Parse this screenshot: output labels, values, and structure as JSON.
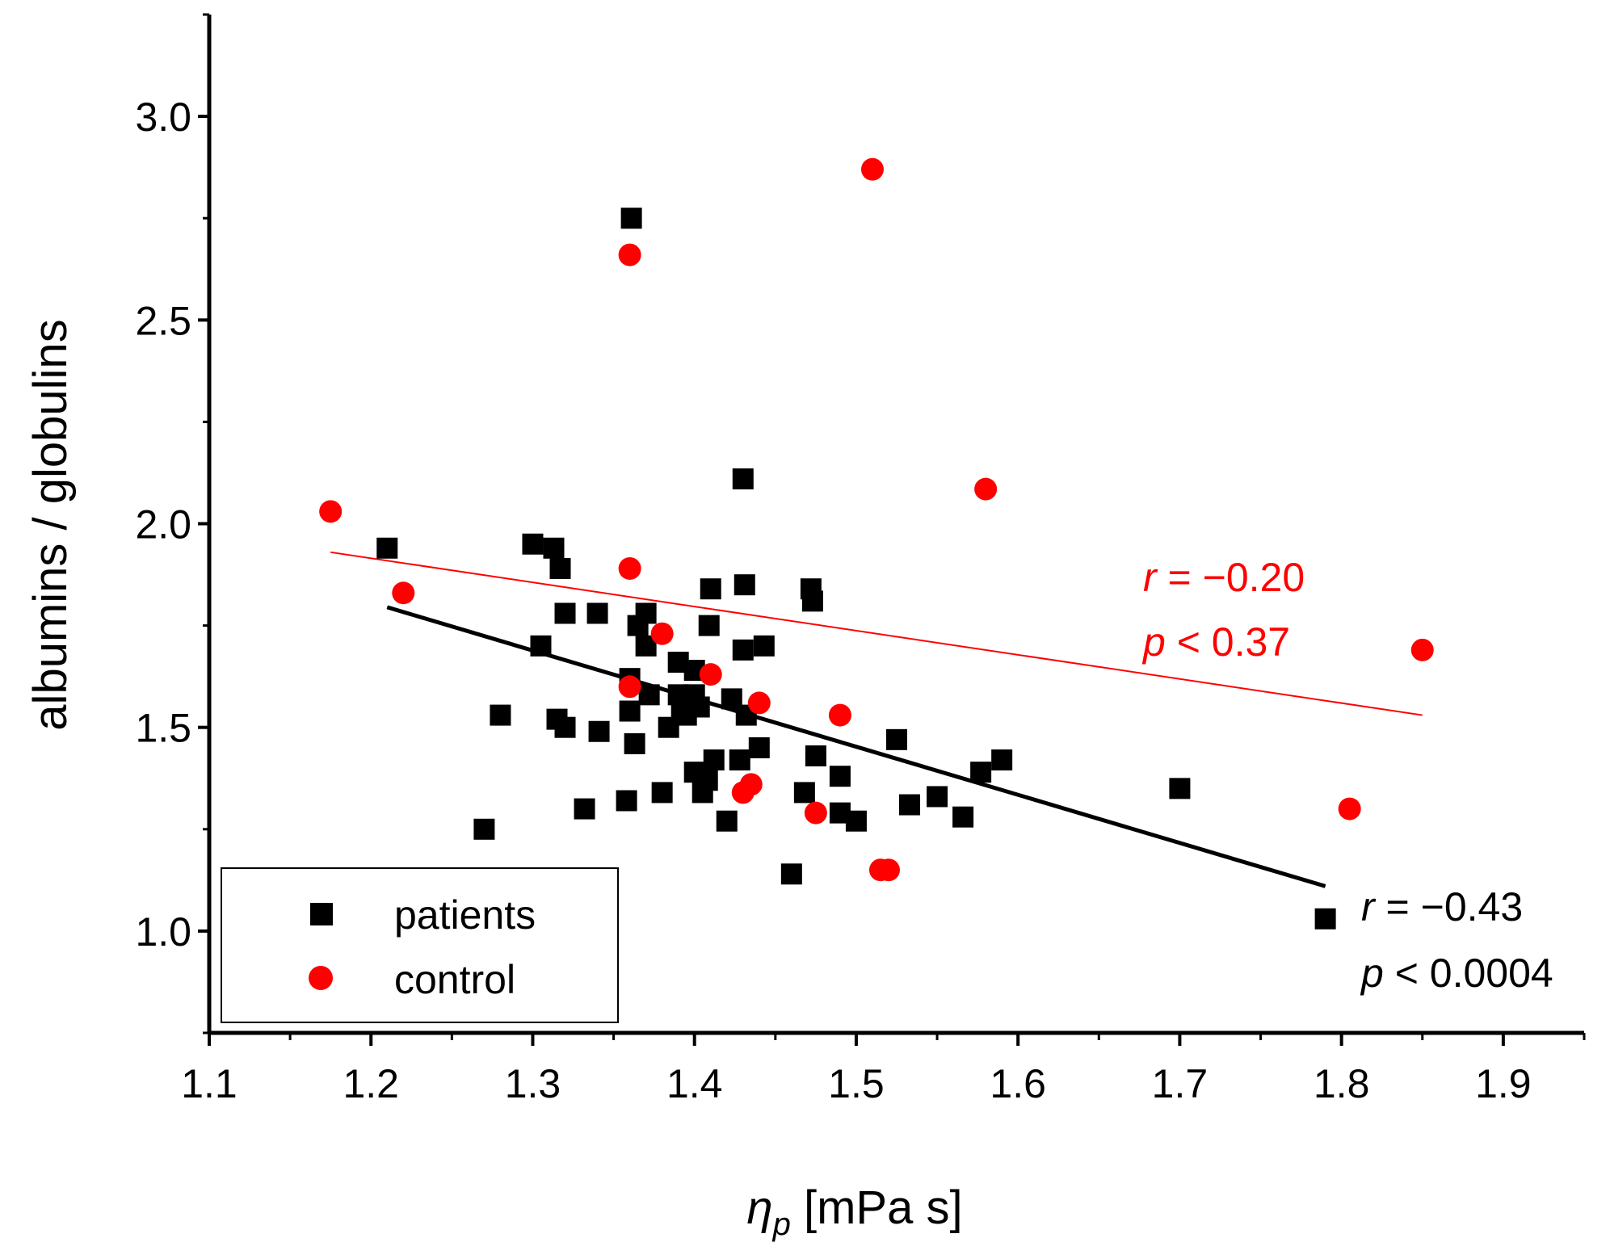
{
  "chart_data": {
    "type": "scatter",
    "xlabel": {
      "symbol": "η",
      "subscript": "p",
      "unit": " [mPa s]"
    },
    "ylabel": "albumins / globulins",
    "xlim": [
      1.1,
      1.95
    ],
    "ylim": [
      0.75,
      3.25
    ],
    "xticks": [
      "1.1",
      "1.2",
      "1.3",
      "1.4",
      "1.5",
      "1.6",
      "1.7",
      "1.8",
      "1.9"
    ],
    "yticks": [
      "1.0",
      "1.5",
      "2.0",
      "2.5",
      "3.0"
    ],
    "legend": {
      "position": "bottom-left",
      "entries": [
        "patients",
        "control"
      ]
    },
    "series": [
      {
        "name": "patients",
        "marker": "square",
        "color": "#000000",
        "points": [
          [
            1.21,
            1.94
          ],
          [
            1.27,
            1.25
          ],
          [
            1.28,
            1.53
          ],
          [
            1.3,
            1.95
          ],
          [
            1.305,
            1.7
          ],
          [
            1.313,
            1.94
          ],
          [
            1.315,
            1.52
          ],
          [
            1.317,
            1.89
          ],
          [
            1.32,
            1.78
          ],
          [
            1.32,
            1.5
          ],
          [
            1.332,
            1.3
          ],
          [
            1.34,
            1.78
          ],
          [
            1.341,
            1.49
          ],
          [
            1.358,
            1.32
          ],
          [
            1.36,
            1.62
          ],
          [
            1.36,
            1.54
          ],
          [
            1.361,
            2.75
          ],
          [
            1.363,
            1.46
          ],
          [
            1.365,
            1.75
          ],
          [
            1.37,
            1.78
          ],
          [
            1.37,
            1.7
          ],
          [
            1.372,
            1.58
          ],
          [
            1.38,
            1.34
          ],
          [
            1.384,
            1.5
          ],
          [
            1.39,
            1.66
          ],
          [
            1.39,
            1.58
          ],
          [
            1.392,
            1.55
          ],
          [
            1.395,
            1.53
          ],
          [
            1.4,
            1.39
          ],
          [
            1.4,
            1.64
          ],
          [
            1.4,
            1.58
          ],
          [
            1.403,
            1.55
          ],
          [
            1.405,
            1.34
          ],
          [
            1.408,
            1.37
          ],
          [
            1.409,
            1.75
          ],
          [
            1.41,
            1.84
          ],
          [
            1.412,
            1.42
          ],
          [
            1.42,
            1.27
          ],
          [
            1.423,
            1.57
          ],
          [
            1.428,
            1.42
          ],
          [
            1.43,
            2.11
          ],
          [
            1.43,
            1.69
          ],
          [
            1.431,
            1.85
          ],
          [
            1.432,
            1.53
          ],
          [
            1.44,
            1.45
          ],
          [
            1.443,
            1.7
          ],
          [
            1.46,
            1.14
          ],
          [
            1.468,
            1.34
          ],
          [
            1.472,
            1.84
          ],
          [
            1.473,
            1.81
          ],
          [
            1.475,
            1.43
          ],
          [
            1.49,
            1.38
          ],
          [
            1.49,
            1.29
          ],
          [
            1.5,
            1.27
          ],
          [
            1.525,
            1.47
          ],
          [
            1.533,
            1.31
          ],
          [
            1.55,
            1.33
          ],
          [
            1.566,
            1.28
          ],
          [
            1.577,
            1.39
          ],
          [
            1.59,
            1.42
          ],
          [
            1.7,
            1.35
          ],
          [
            1.79,
            1.03
          ]
        ],
        "fit": {
          "x": [
            1.21,
            1.79
          ],
          "y": [
            1.795,
            1.11
          ]
        },
        "stats": {
          "r": "r = −0.43",
          "p": "p < 0.0004"
        }
      },
      {
        "name": "control",
        "marker": "circle",
        "color": "#ff0000",
        "points": [
          [
            1.175,
            2.03
          ],
          [
            1.22,
            1.83
          ],
          [
            1.36,
            2.66
          ],
          [
            1.36,
            1.89
          ],
          [
            1.36,
            1.6
          ],
          [
            1.38,
            1.73
          ],
          [
            1.41,
            1.63
          ],
          [
            1.43,
            1.34
          ],
          [
            1.435,
            1.36
          ],
          [
            1.44,
            1.56
          ],
          [
            1.475,
            1.29
          ],
          [
            1.49,
            1.53
          ],
          [
            1.51,
            2.87
          ],
          [
            1.515,
            1.15
          ],
          [
            1.52,
            1.15
          ],
          [
            1.58,
            2.085
          ],
          [
            1.805,
            1.3
          ],
          [
            1.85,
            1.69
          ]
        ],
        "fit": {
          "x": [
            1.175,
            1.85
          ],
          "y": [
            1.93,
            1.53
          ]
        },
        "stats": {
          "r": "r = −0.20",
          "p": "p < 0.37"
        }
      }
    ]
  }
}
